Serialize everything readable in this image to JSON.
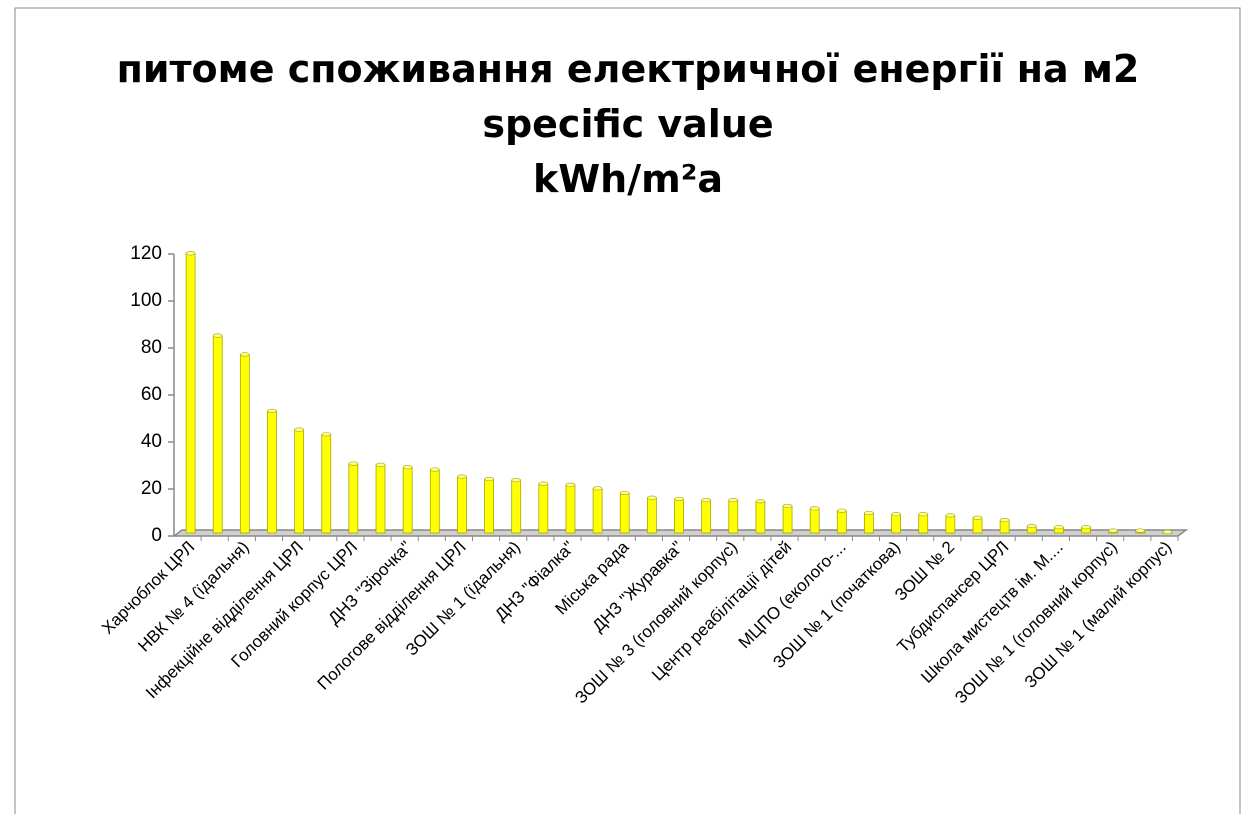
{
  "chart_data": {
    "type": "bar",
    "title": [
      "питоме споживання електричної енергії на м2",
      "specific value",
      "kWh/m²a"
    ],
    "categories": [
      "Харчоблок ЦРЛ",
      null,
      "НВК № 4 (їдальня)",
      null,
      "Інфекційне відділення ЦРЛ",
      null,
      "Головний корпус ЦРЛ",
      null,
      "ДНЗ \"Зірочка\"",
      null,
      "Пологове відділення ЦРЛ",
      null,
      "ЗОШ № 1 (їдальня)",
      null,
      "ДНЗ \"Фіалка\"",
      null,
      "Міська рада",
      null,
      "ДНЗ \"Журавка\"",
      null,
      "ЗОШ № 3 (головний корпус)",
      null,
      "Центр реабілітації дітей",
      null,
      "МЦПО (еколого-...",
      null,
      "ЗОШ № 1 (початкова)",
      null,
      "ЗОШ № 2",
      null,
      "Тубдиспансер ЦРЛ",
      null,
      "Школа мистецтв ім. М....",
      null,
      "ЗОШ № 1 (головний корпус)",
      null,
      "ЗОШ № 1 (малий корпус)"
    ],
    "values": [
      119,
      84,
      76,
      52,
      44,
      42,
      29.5,
      29,
      28,
      27,
      24,
      23,
      22.5,
      21,
      20.5,
      19,
      17,
      15,
      14.5,
      14,
      14,
      13.5,
      11.5,
      10.5,
      9.5,
      8.5,
      8,
      8,
      7.5,
      6.5,
      5.5,
      3,
      2.5,
      2.5,
      1,
      1,
      0.5
    ],
    "color": "#ffff00",
    "ylim": [
      0,
      120
    ],
    "yticks": [
      0,
      20,
      40,
      60,
      80,
      100,
      120
    ],
    "grid": false
  }
}
